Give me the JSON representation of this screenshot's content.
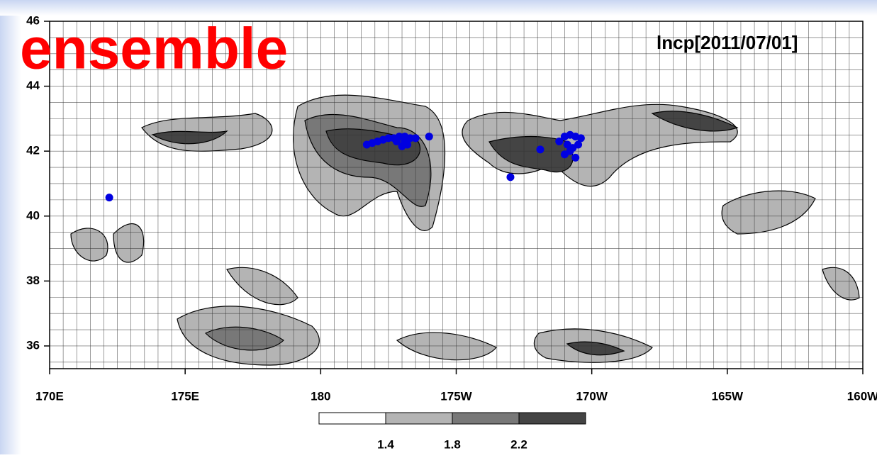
{
  "chart_data": {
    "type": "scatter",
    "title": "ensemble",
    "annotation": "lncp[2011/07/01]",
    "xlim": [
      170,
      200
    ],
    "ylim": [
      35.3,
      46
    ],
    "xticks": [
      {
        "value": 170,
        "label": "170E"
      },
      {
        "value": 175,
        "label": "175E"
      },
      {
        "value": 180,
        "label": "180"
      },
      {
        "value": 185,
        "label": "175W"
      },
      {
        "value": 190,
        "label": "170W"
      },
      {
        "value": 195,
        "label": "165W"
      },
      {
        "value": 200,
        "label": "160W"
      }
    ],
    "yticks": [
      36,
      38,
      40,
      42,
      44,
      46
    ],
    "grid": true,
    "series": [
      {
        "color": "#0000e0",
        "x": [
          172.2,
          181.7,
          181.9,
          182.1,
          182.3,
          182.5,
          182.7,
          182.9,
          183.1,
          183.3,
          183.1,
          182.8,
          183.5,
          183.2,
          183.0,
          184.0,
          187.0,
          188.1,
          188.8,
          189.0,
          189.2,
          189.4,
          189.6,
          189.1,
          189.3,
          189.5,
          189.0,
          189.4,
          189.2
        ],
        "values": [
          40.57,
          42.2,
          42.25,
          42.3,
          42.35,
          42.4,
          42.4,
          42.45,
          42.45,
          42.4,
          42.3,
          42.3,
          42.4,
          42.2,
          42.15,
          42.45,
          41.2,
          42.05,
          42.3,
          42.45,
          42.5,
          42.45,
          42.4,
          42.2,
          42.1,
          42.2,
          41.9,
          41.8,
          42.0
        ]
      }
    ],
    "colorbar": {
      "ticks": [
        1.4,
        1.8,
        2.2
      ],
      "colors": [
        "#ffffff",
        "#b4b4b4",
        "#787878",
        "#444444"
      ]
    }
  }
}
